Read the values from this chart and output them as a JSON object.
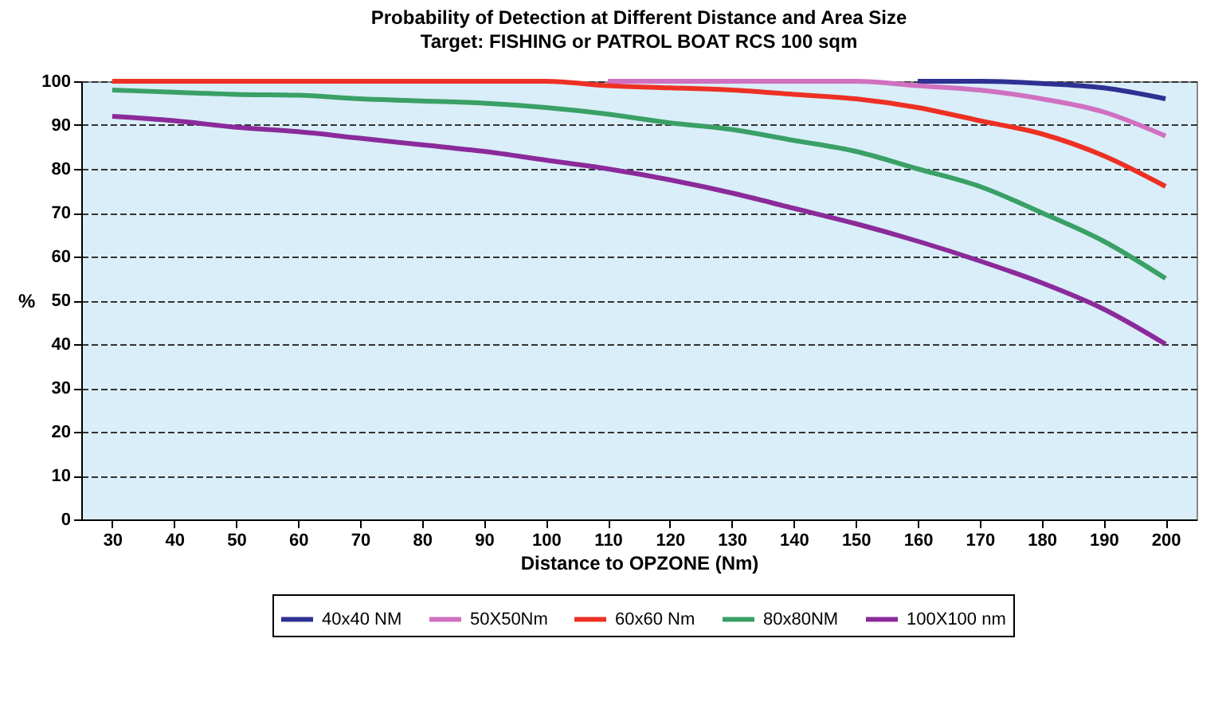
{
  "chart_data": {
    "type": "line",
    "title": "Probability of Detection at Different Distance and  Area Size",
    "subtitle": "Target: FISHING or PATROL BOAT  RCS 100 sqm",
    "xlabel": "Distance to OPZONE (Nm)",
    "ylabel": "%",
    "categories": [
      "30",
      "40",
      "50",
      "60",
      "70",
      "80",
      "90",
      "100",
      "110",
      "120",
      "130",
      "140",
      "150",
      "160",
      "170",
      "180",
      "190",
      "200"
    ],
    "series": [
      {
        "name": "40x40 NM",
        "color": "#2e3192",
        "values": [
          null,
          null,
          null,
          null,
          null,
          null,
          null,
          null,
          null,
          null,
          null,
          null,
          null,
          100,
          100,
          99.5,
          98.5,
          96
        ]
      },
      {
        "name": "50X50Nm",
        "color": "#d070c0",
        "values": [
          null,
          null,
          null,
          null,
          null,
          null,
          null,
          null,
          100,
          100,
          100,
          100,
          100,
          99,
          98,
          96,
          93,
          87.5
        ]
      },
      {
        "name": "60x60 Nm",
        "color": "#ee3024",
        "values": [
          100,
          100,
          100,
          100,
          100,
          100,
          100,
          100,
          99,
          98.5,
          98,
          97,
          96,
          94,
          91,
          88,
          83,
          76
        ]
      },
      {
        "name": "80x80NM",
        "color": "#3aa066",
        "values": [
          98,
          97.5,
          97,
          96.8,
          96,
          95.5,
          95,
          94,
          92.5,
          90.5,
          89,
          86.5,
          84,
          80,
          76,
          70,
          63.5,
          55
        ]
      },
      {
        "name": "100X100 nm",
        "color": "#8b2a9a",
        "values": [
          92,
          91,
          89.5,
          88.5,
          87,
          85.5,
          84,
          82,
          80,
          77.5,
          74.5,
          71,
          67.5,
          63.5,
          59,
          54,
          48,
          40
        ]
      }
    ],
    "ylim": [
      0,
      100
    ],
    "yticks": [
      0,
      10,
      20,
      30,
      40,
      50,
      60,
      70,
      80,
      90,
      100
    ],
    "grid": "y",
    "legend": "bottom",
    "marker": "none",
    "line_style": "solid"
  }
}
